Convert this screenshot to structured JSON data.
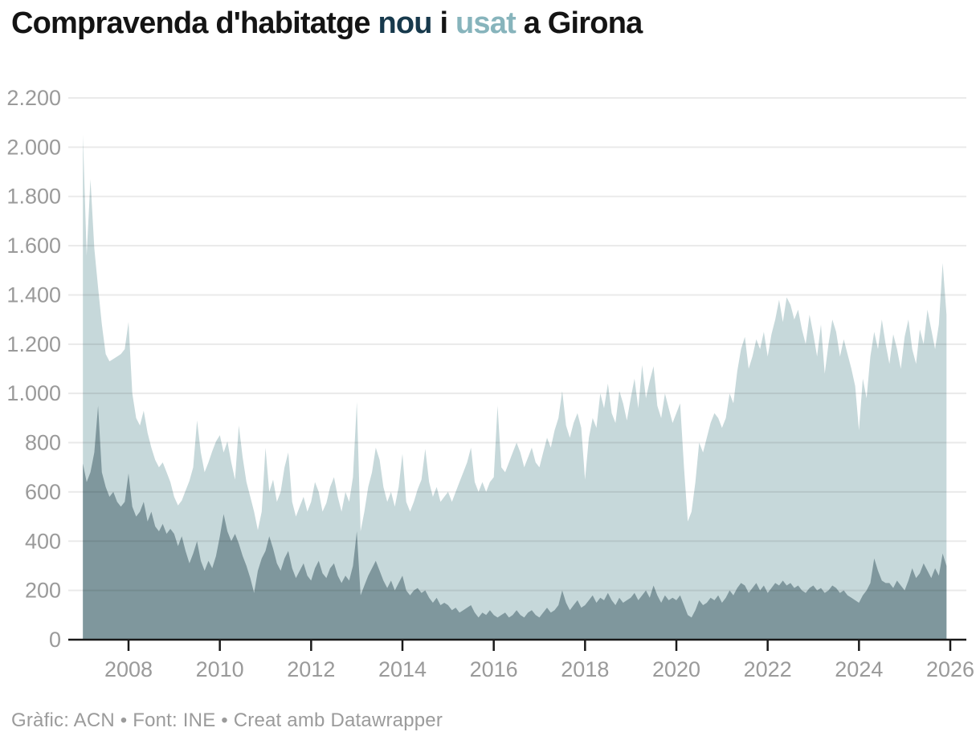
{
  "title": {
    "prefix": "Compravenda d'habitatge ",
    "nou": "nou",
    "mid": " i ",
    "usat": "usat",
    "suffix": " a Girona"
  },
  "footer": "Gràfic: ACN • Font: INE • Creat amb Datawrapper",
  "colors": {
    "usat_area": "#c6d8da",
    "nou_area": "#7f979d",
    "title_nou": "#17394c",
    "title_usat": "#87b4bc",
    "axis_text": "#9a9a9a",
    "grid_overlay": "rgba(26,26,26,0.09)",
    "baseline": "#1a1a1a",
    "background": "#ffffff"
  },
  "chart_data": {
    "type": "area",
    "title": "Compravenda d'habitatge nou i usat a Girona",
    "frequency": "monthly",
    "x_start_year": 2007,
    "x_end_year_month": "2025-12",
    "x_ticks": [
      2008,
      2010,
      2012,
      2014,
      2016,
      2018,
      2020,
      2022,
      2024,
      2026
    ],
    "y_ticks": [
      2200,
      2000,
      1800,
      1600,
      1400,
      1200,
      1000,
      800,
      600,
      400,
      200,
      0
    ],
    "y_tick_labels": [
      "2.200",
      "2.000",
      "1.800",
      "1.600",
      "1.400",
      "1.200",
      "1.000",
      "800",
      "600",
      "400",
      "200",
      "0"
    ],
    "ylim": [
      0,
      2200
    ],
    "grid": true,
    "legend_position": "in-title",
    "series": [
      {
        "name": "usat",
        "color": "#c6d8da",
        "values": [
          2050,
          1560,
          1870,
          1590,
          1430,
          1280,
          1160,
          1130,
          1140,
          1150,
          1160,
          1180,
          1290,
          1000,
          900,
          870,
          930,
          840,
          780,
          730,
          700,
          720,
          680,
          640,
          580,
          545,
          565,
          605,
          645,
          700,
          890,
          760,
          680,
          720,
          765,
          805,
          830,
          760,
          805,
          720,
          650,
          870,
          740,
          640,
          580,
          520,
          445,
          520,
          780,
          600,
          650,
          560,
          600,
          700,
          760,
          560,
          500,
          540,
          580,
          520,
          560,
          640,
          600,
          520,
          555,
          620,
          660,
          580,
          520,
          600,
          560,
          660,
          965,
          440,
          520,
          620,
          680,
          780,
          730,
          620,
          560,
          600,
          540,
          620,
          755,
          560,
          520,
          560,
          610,
          650,
          775,
          640,
          580,
          620,
          560,
          580,
          600,
          560,
          600,
          640,
          680,
          720,
          780,
          640,
          600,
          640,
          600,
          640,
          660,
          950,
          700,
          680,
          720,
          760,
          800,
          760,
          700,
          740,
          780,
          720,
          700,
          760,
          820,
          780,
          850,
          900,
          1010,
          870,
          820,
          880,
          920,
          860,
          650,
          820,
          900,
          860,
          1000,
          940,
          1040,
          920,
          880,
          1010,
          960,
          890,
          980,
          1060,
          940,
          1115,
          980,
          1050,
          1110,
          950,
          900,
          1000,
          940,
          880,
          920,
          960,
          700,
          480,
          520,
          640,
          800,
          760,
          820,
          880,
          920,
          900,
          860,
          900,
          1000,
          960,
          1090,
          1180,
          1230,
          1100,
          1150,
          1220,
          1180,
          1250,
          1150,
          1240,
          1300,
          1380,
          1290,
          1390,
          1360,
          1300,
          1340,
          1260,
          1200,
          1320,
          1240,
          1150,
          1280,
          1080,
          1200,
          1300,
          1250,
          1150,
          1220,
          1160,
          1100,
          1030,
          850,
          1060,
          980,
          1150,
          1250,
          1180,
          1300,
          1200,
          1120,
          1240,
          1180,
          1100,
          1230,
          1300,
          1180,
          1120,
          1260,
          1200,
          1340,
          1260,
          1180,
          1280,
          1530,
          1320
        ]
      },
      {
        "name": "nou",
        "color": "#7f979d",
        "values": [
          715,
          640,
          680,
          760,
          950,
          680,
          620,
          580,
          600,
          560,
          540,
          560,
          675,
          540,
          500,
          520,
          560,
          480,
          520,
          460,
          440,
          470,
          430,
          450,
          430,
          380,
          420,
          360,
          310,
          350,
          400,
          320,
          280,
          320,
          290,
          340,
          420,
          510,
          440,
          400,
          430,
          390,
          340,
          300,
          250,
          190,
          280,
          330,
          360,
          420,
          370,
          310,
          280,
          330,
          360,
          290,
          250,
          280,
          310,
          260,
          240,
          290,
          320,
          270,
          250,
          290,
          310,
          260,
          230,
          260,
          240,
          300,
          440,
          180,
          220,
          260,
          290,
          320,
          280,
          240,
          210,
          240,
          200,
          230,
          260,
          200,
          180,
          200,
          210,
          190,
          200,
          170,
          150,
          170,
          140,
          150,
          140,
          120,
          130,
          110,
          120,
          130,
          140,
          110,
          90,
          110,
          100,
          120,
          100,
          90,
          100,
          110,
          90,
          100,
          120,
          100,
          90,
          110,
          120,
          100,
          90,
          110,
          130,
          110,
          120,
          140,
          200,
          150,
          120,
          140,
          160,
          130,
          140,
          160,
          180,
          150,
          170,
          160,
          190,
          160,
          140,
          170,
          150,
          160,
          170,
          190,
          160,
          180,
          200,
          170,
          220,
          180,
          150,
          180,
          160,
          170,
          160,
          180,
          140,
          100,
          90,
          120,
          160,
          140,
          150,
          170,
          160,
          180,
          150,
          170,
          200,
          180,
          210,
          230,
          220,
          190,
          210,
          230,
          200,
          220,
          190,
          210,
          230,
          220,
          240,
          220,
          230,
          210,
          220,
          200,
          190,
          210,
          220,
          200,
          210,
          190,
          200,
          220,
          210,
          190,
          200,
          180,
          170,
          160,
          150,
          180,
          200,
          230,
          330,
          280,
          240,
          230,
          230,
          210,
          240,
          220,
          200,
          240,
          290,
          250,
          270,
          310,
          280,
          250,
          290,
          260,
          350,
          300
        ]
      }
    ]
  }
}
